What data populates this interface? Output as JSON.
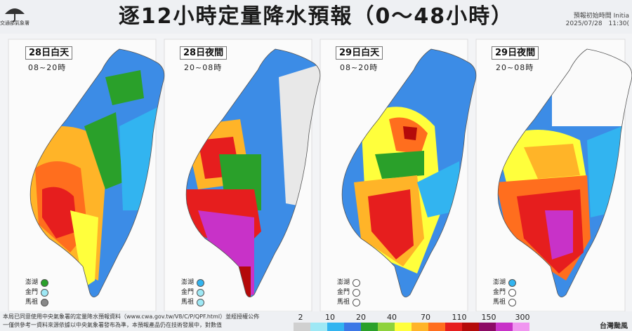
{
  "header": {
    "logo_text": "交通部氣象署",
    "title": "逐12小時定量降水預報（0～48小時）",
    "issue_line1": "預報初始時間 Initia",
    "issue_line2": "2025/07/28　11:30("
  },
  "panels": [
    {
      "day": "28日白天",
      "time": "08~20時",
      "islands": [
        "green",
        "#29b6f6",
        "#888"
      ]
    },
    {
      "day": "28日夜間",
      "time": "20~08時",
      "islands": [
        "#29b6f6",
        "#fff",
        "#fff"
      ]
    },
    {
      "day": "29日白天",
      "time": "08~20時",
      "islands": [
        "#fff",
        "#fff",
        "#fff"
      ]
    },
    {
      "day": "29日夜間",
      "time": "20~08時",
      "islands": [
        "#29b6f6",
        "#fff",
        "#fff"
      ]
    }
  ],
  "island_names": [
    "澎湖",
    "金門",
    "馬祖"
  ],
  "footer": {
    "note1": "本局已同意使用中央氣象署的定量降水預報資料（www.cwa.gov.tw/V8/C/P/QPF.html）並經授權公佈",
    "note2": "一僅供參考一資料來源依據以中央氣象署發布為準，本預報產品仍在技術發展中，對數值",
    "brand": "台灣颱風"
  },
  "scale": {
    "labels": [
      "2",
      "10",
      "20",
      "40",
      "70",
      "110",
      "150",
      "300"
    ],
    "colors": [
      "#d0d0d0",
      "#9ee8f5",
      "#32b4f0",
      "#3c78e6",
      "#2aa02a",
      "#8ed23c",
      "#ffff3c",
      "#ffb428",
      "#ff6e1e",
      "#e61e1e",
      "#b40a0a",
      "#8c0a64",
      "#c832c8",
      "#f096f0"
    ]
  }
}
